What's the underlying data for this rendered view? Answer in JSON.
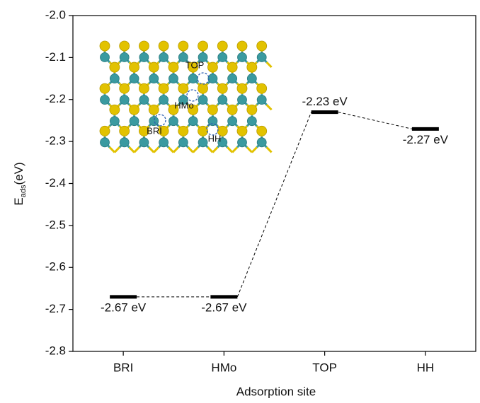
{
  "chart_data": {
    "type": "level",
    "x_label": "Adsorption site",
    "y_label": {
      "main": "E",
      "sub": "ads",
      "unit": "(eV)"
    },
    "categories": [
      "BRI",
      "HMo",
      "TOP",
      "HH"
    ],
    "values": [
      -2.67,
      -2.67,
      -2.23,
      -2.27
    ],
    "value_labels": [
      "-2.67 eV",
      "-2.67 eV",
      "-2.23 eV",
      "-2.27 eV"
    ],
    "color": "#000000",
    "connector": "dashed",
    "ylim": [
      -2.8,
      -2.0
    ],
    "yticks": [
      -2.8,
      -2.7,
      -2.6,
      -2.5,
      -2.4,
      -2.3,
      -2.2,
      -2.1,
      {
        "value": -2,
        "label": "-2.0"
      }
    ],
    "inset": {
      "labels": [
        "TOP",
        "HMo",
        "BRI",
        "HH"
      ]
    }
  }
}
